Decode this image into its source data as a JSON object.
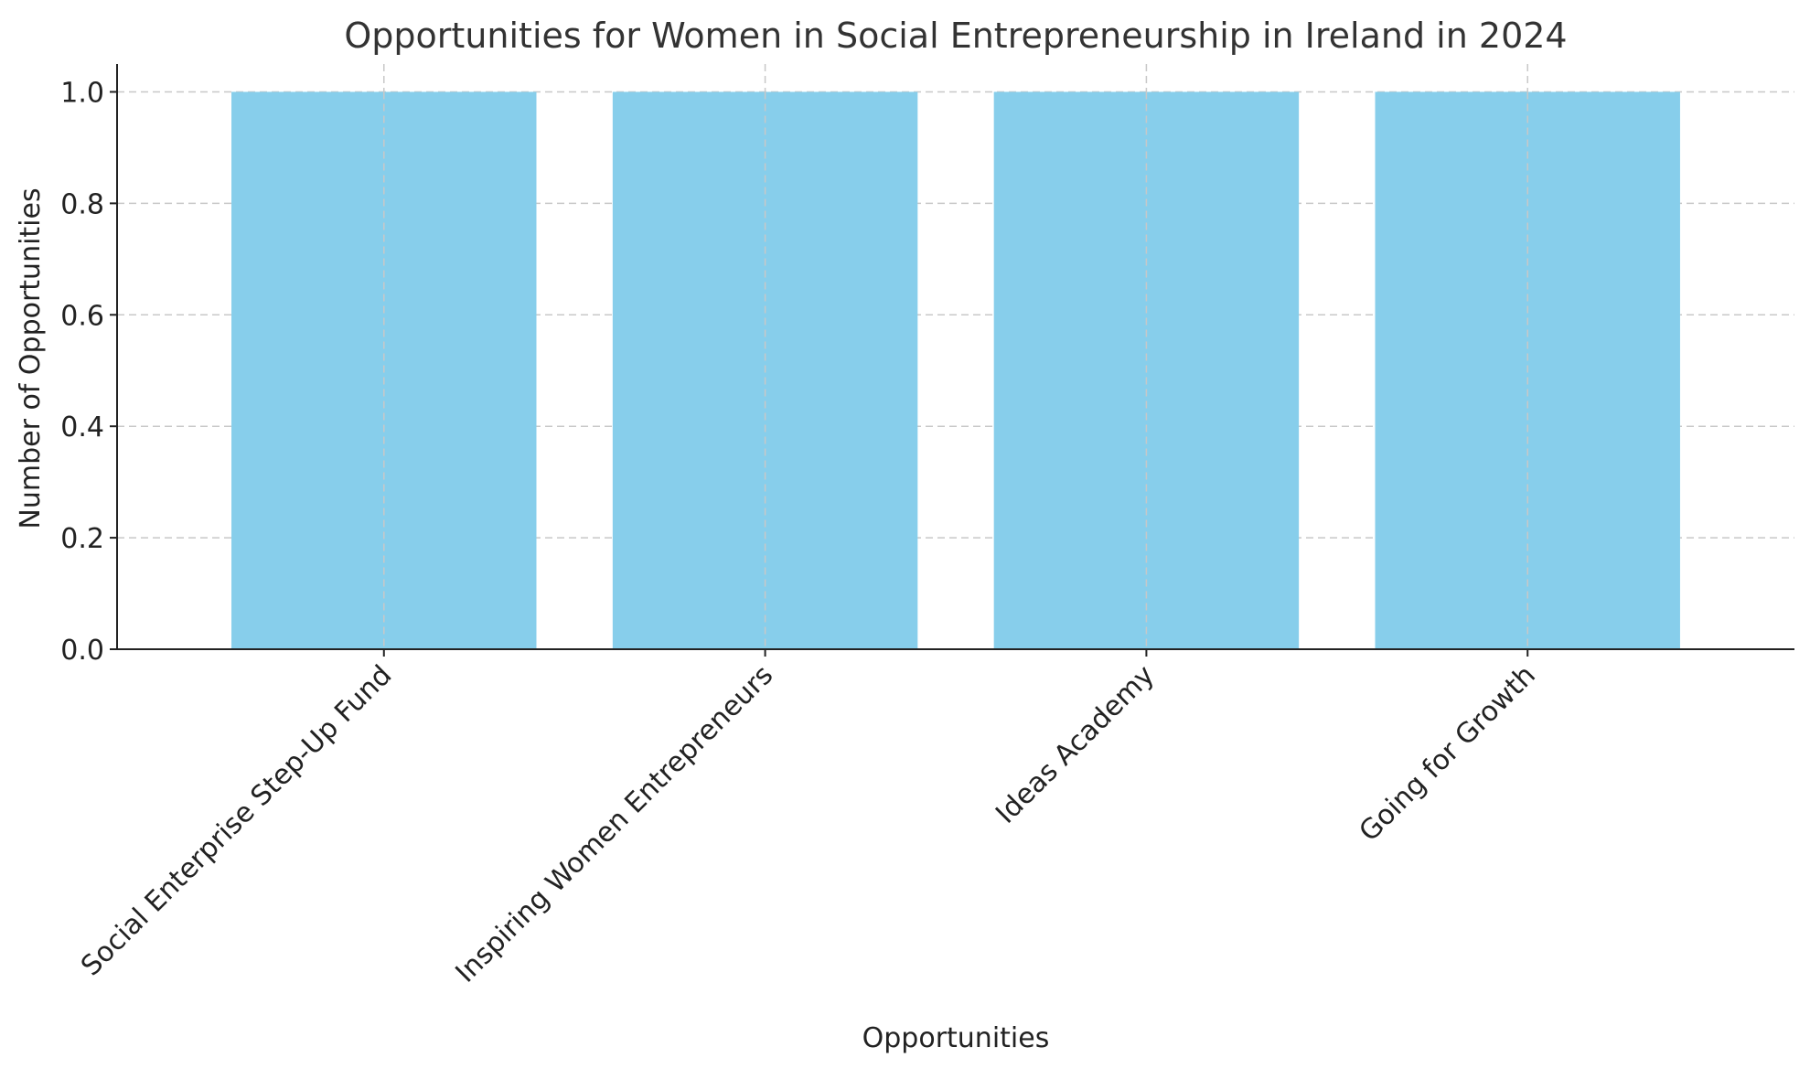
{
  "chart_data": {
    "type": "bar",
    "title": "Opportunities for Women in Social Entrepreneurship in Ireland in 2024",
    "xlabel": "Opportunities",
    "ylabel": "Number of Opportunities",
    "categories": [
      "Social Enterprise Step-Up Fund",
      "Inspiring Women Entrepreneurs",
      "Ideas Academy",
      "Going for Growth"
    ],
    "values": [
      1,
      1,
      1,
      1
    ],
    "ylim": [
      0,
      1.05
    ],
    "yticks": [
      "0.0",
      "0.2",
      "0.4",
      "0.6",
      "0.8",
      "1.0"
    ],
    "grid": true,
    "bar_color": "#87ceeb",
    "legend": "none"
  }
}
